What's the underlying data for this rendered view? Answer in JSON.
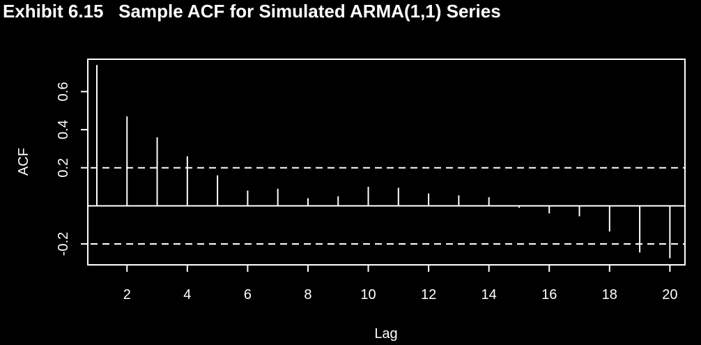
{
  "title": "Exhibit 6.15   Sample ACF for Simulated ARMA(1,1) Series",
  "colors": {
    "background": "#000000",
    "foreground": "#ffffff"
  },
  "chart_data": {
    "type": "bar",
    "subtype": "acf-stem",
    "xlabel": "Lag",
    "ylabel": "ACF",
    "xlim": [
      0.7,
      20.5
    ],
    "ylim": [
      -0.31,
      0.77
    ],
    "x_ticks": [
      2,
      4,
      6,
      8,
      10,
      12,
      14,
      16,
      18,
      20
    ],
    "y_ticks": [
      -0.2,
      0.2,
      0.4,
      0.6
    ],
    "y_tick_labels": [
      "-0.2",
      "0.2",
      "0.4",
      "0.6"
    ],
    "zero_line": 0,
    "confidence_bounds": [
      0.2,
      -0.2
    ],
    "lags": [
      1,
      2,
      3,
      4,
      5,
      6,
      7,
      8,
      9,
      10,
      11,
      12,
      13,
      14,
      15,
      16,
      17,
      18,
      19,
      20
    ],
    "values": [
      0.74,
      0.47,
      0.36,
      0.26,
      0.16,
      0.08,
      0.09,
      0.04,
      0.05,
      0.1,
      0.095,
      0.065,
      0.055,
      0.045,
      -0.01,
      -0.04,
      -0.055,
      -0.135,
      -0.245,
      -0.275
    ],
    "grid": false,
    "legend": "none"
  }
}
